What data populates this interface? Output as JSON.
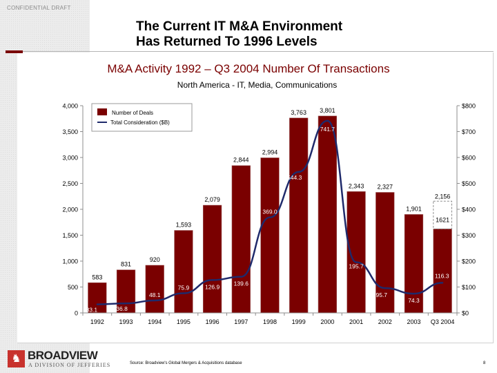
{
  "header": {
    "confidential": "CONFIDENTIAL DRAFT",
    "title_line1": "The Current IT M&A Environment",
    "title_line2": "Has Returned To 1996 Levels"
  },
  "colors": {
    "bar": "#7a0000",
    "line": "#1f2a6b",
    "accent": "#7a0000"
  },
  "chart_data": {
    "type": "bar",
    "title": "M&A Activity 1992 – Q3 2004 Number Of Transactions",
    "subtitle": "North America - IT, Media, Communications",
    "categories": [
      "1992",
      "1993",
      "1994",
      "1995",
      "1996",
      "1997",
      "1998",
      "1999",
      "2000",
      "2001",
      "2002",
      "2003",
      "Q3 2004"
    ],
    "series": [
      {
        "name": "Number of Deals",
        "type": "bar",
        "axis": "left",
        "values": [
          583,
          831,
          920,
          1593,
          2079,
          2844,
          2994,
          3763,
          3801,
          2343,
          2327,
          1901,
          1621
        ],
        "labels": [
          "583",
          "831",
          "920",
          "1,593",
          "2,079",
          "2,844",
          "2,994",
          "3,763",
          "3,801",
          "2,343",
          "2,327",
          "1,901",
          "1621"
        ]
      },
      {
        "name": "Total Consideration ($B)",
        "type": "line",
        "axis": "right",
        "values": [
          33.1,
          36.8,
          48.1,
          75.9,
          126.9,
          139.6,
          369.0,
          544.3,
          741.7,
          195.7,
          95.7,
          74.3,
          116.3
        ],
        "labels": [
          "33.1",
          "36.8",
          "48.1",
          "75.9",
          "126.9",
          "139.6",
          "369.0",
          "544.3",
          "741.7",
          "195.7",
          "95.7",
          "74.3",
          "116.3"
        ]
      }
    ],
    "annotations": [
      {
        "category": "Q3 2004",
        "text": "2,156",
        "value": 2156,
        "style": "dashed projection box"
      }
    ],
    "ylim_left": [
      0,
      4000
    ],
    "yticks_left": [
      "0",
      "500",
      "1,000",
      "1,500",
      "2,000",
      "2,500",
      "3,000",
      "3,500",
      "4,000"
    ],
    "ylim_right": [
      0,
      800
    ],
    "yticks_right": [
      "$0",
      "$100",
      "$200",
      "$300",
      "$400",
      "$500",
      "$600",
      "$700",
      "$800"
    ],
    "legend": {
      "placement": "top-left",
      "entries": [
        "Number of Deals",
        "Total Consideration ($B)"
      ]
    },
    "grid": false
  },
  "footer": {
    "logo_name": "BROADVIEW",
    "logo_sub": "A DIVISION OF JEFFERIES",
    "logo_icon": "lion-crest-icon",
    "source": "Source:  Broadview's Global Mergers & Acquisitions database",
    "page_number": "8"
  }
}
